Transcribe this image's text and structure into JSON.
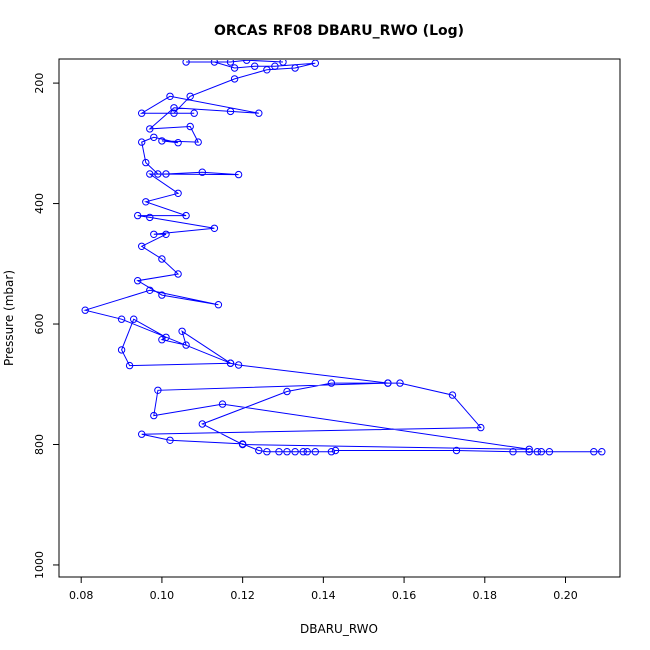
{
  "chart_data": {
    "type": "line",
    "title": "ORCAS RF08 DBARU_RWO (Log)",
    "xlabel": "DBARU_RWO",
    "ylabel": "Pressure (mbar)",
    "xlim": [
      0.0745,
      0.2135
    ],
    "ylim": [
      1020,
      160
    ],
    "y_reversed": true,
    "grid": false,
    "x_ticks": [
      0.08,
      0.1,
      0.12,
      0.14,
      0.16,
      0.18,
      0.2
    ],
    "x_tick_labels": [
      "0.08",
      "0.10",
      "0.12",
      "0.14",
      "0.16",
      "0.18",
      "0.20"
    ],
    "y_ticks": [
      200,
      400,
      600,
      800,
      1000
    ],
    "y_tick_labels": [
      "200",
      "400",
      "600",
      "800",
      "1000"
    ],
    "series": [
      {
        "color": "#0000ff",
        "marker": "open-circle",
        "x": [
          0.209,
          0.207,
          0.196,
          0.194,
          0.193,
          0.191,
          0.187,
          0.173,
          0.143,
          0.142,
          0.138,
          0.136,
          0.135,
          0.133,
          0.131,
          0.129,
          0.126,
          0.124,
          0.12,
          0.102,
          0.095,
          0.179,
          0.172,
          0.159,
          0.156,
          0.142,
          0.131,
          0.11,
          0.12,
          0.191,
          0.115,
          0.098,
          0.099,
          0.156,
          0.119,
          0.117,
          0.092,
          0.09,
          0.093,
          0.101,
          0.1,
          0.106,
          0.105,
          0.117,
          0.09,
          0.081,
          0.097,
          0.114,
          0.1,
          0.094,
          0.104,
          0.1,
          0.095,
          0.101,
          0.098,
          0.113,
          0.097,
          0.094,
          0.106,
          0.096,
          0.104,
          0.097,
          0.119,
          0.11,
          0.101,
          0.099,
          0.096,
          0.095,
          0.098,
          0.104,
          0.1,
          0.109,
          0.107,
          0.097,
          0.103,
          0.117,
          0.124,
          0.102,
          0.095,
          0.108,
          0.103,
          0.107,
          0.118,
          0.126,
          0.133,
          0.138,
          0.128,
          0.123,
          0.118,
          0.113,
          0.106,
          0.117,
          0.121,
          0.13
        ],
        "y": [
          812,
          812,
          812,
          812,
          812,
          812,
          812,
          810,
          810,
          812,
          812,
          812,
          812,
          812,
          812,
          812,
          812,
          810,
          799,
          793,
          783,
          772,
          718,
          698,
          698,
          698,
          712,
          766,
          800,
          808,
          733,
          752,
          710,
          698,
          668,
          665,
          669,
          643,
          592,
          622,
          626,
          635,
          612,
          665,
          592,
          577,
          544,
          568,
          552,
          528,
          517,
          492,
          471,
          451,
          451,
          441,
          423,
          420,
          420,
          397,
          383,
          351,
          352,
          348,
          351,
          351,
          332,
          298,
          290,
          299,
          296,
          298,
          272,
          276,
          241,
          247,
          250,
          222,
          250,
          250,
          250,
          222,
          193,
          178,
          175,
          167,
          172,
          172,
          175,
          165,
          165,
          165,
          162,
          165
        ]
      }
    ]
  }
}
